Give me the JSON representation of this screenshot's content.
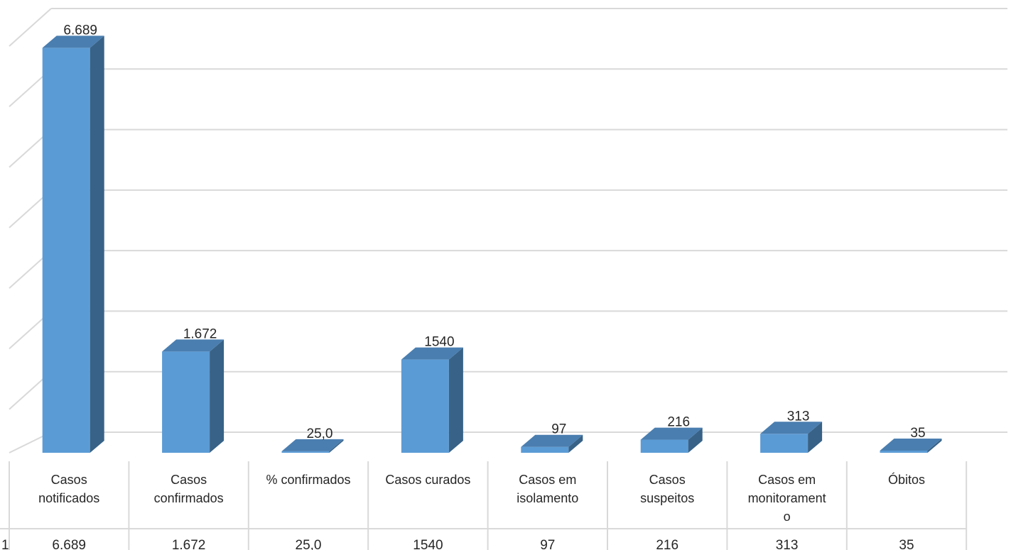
{
  "chart_data": {
    "type": "bar",
    "categories": [
      [
        "Casos",
        "notificados"
      ],
      [
        "Casos",
        "confirmados"
      ],
      [
        "% confirmados"
      ],
      [
        "Casos curados"
      ],
      [
        "Casos em",
        "isolamento"
      ],
      [
        "Casos",
        "suspeitos"
      ],
      [
        "Casos em",
        "monitorament",
        "o"
      ],
      [
        "Óbitos"
      ]
    ],
    "values": [
      6689,
      1672,
      25.0,
      1540,
      97,
      216,
      313,
      35
    ],
    "value_labels": [
      "6.689",
      "1.672",
      "25,0",
      "1540",
      "97",
      "216",
      "313",
      "35"
    ],
    "table_row": [
      "6.689",
      "1.672",
      "25,0",
      "1540",
      "97",
      "216",
      "313",
      "35"
    ],
    "table_row_marker": "1",
    "ylim": [
      0,
      7000
    ],
    "grid": true,
    "three_d": true,
    "colors": {
      "bar_front": "#5b9bd5",
      "bar_side": "#386287",
      "bar_top": "#4a7eb0",
      "grid": "#d9d9d9"
    }
  }
}
